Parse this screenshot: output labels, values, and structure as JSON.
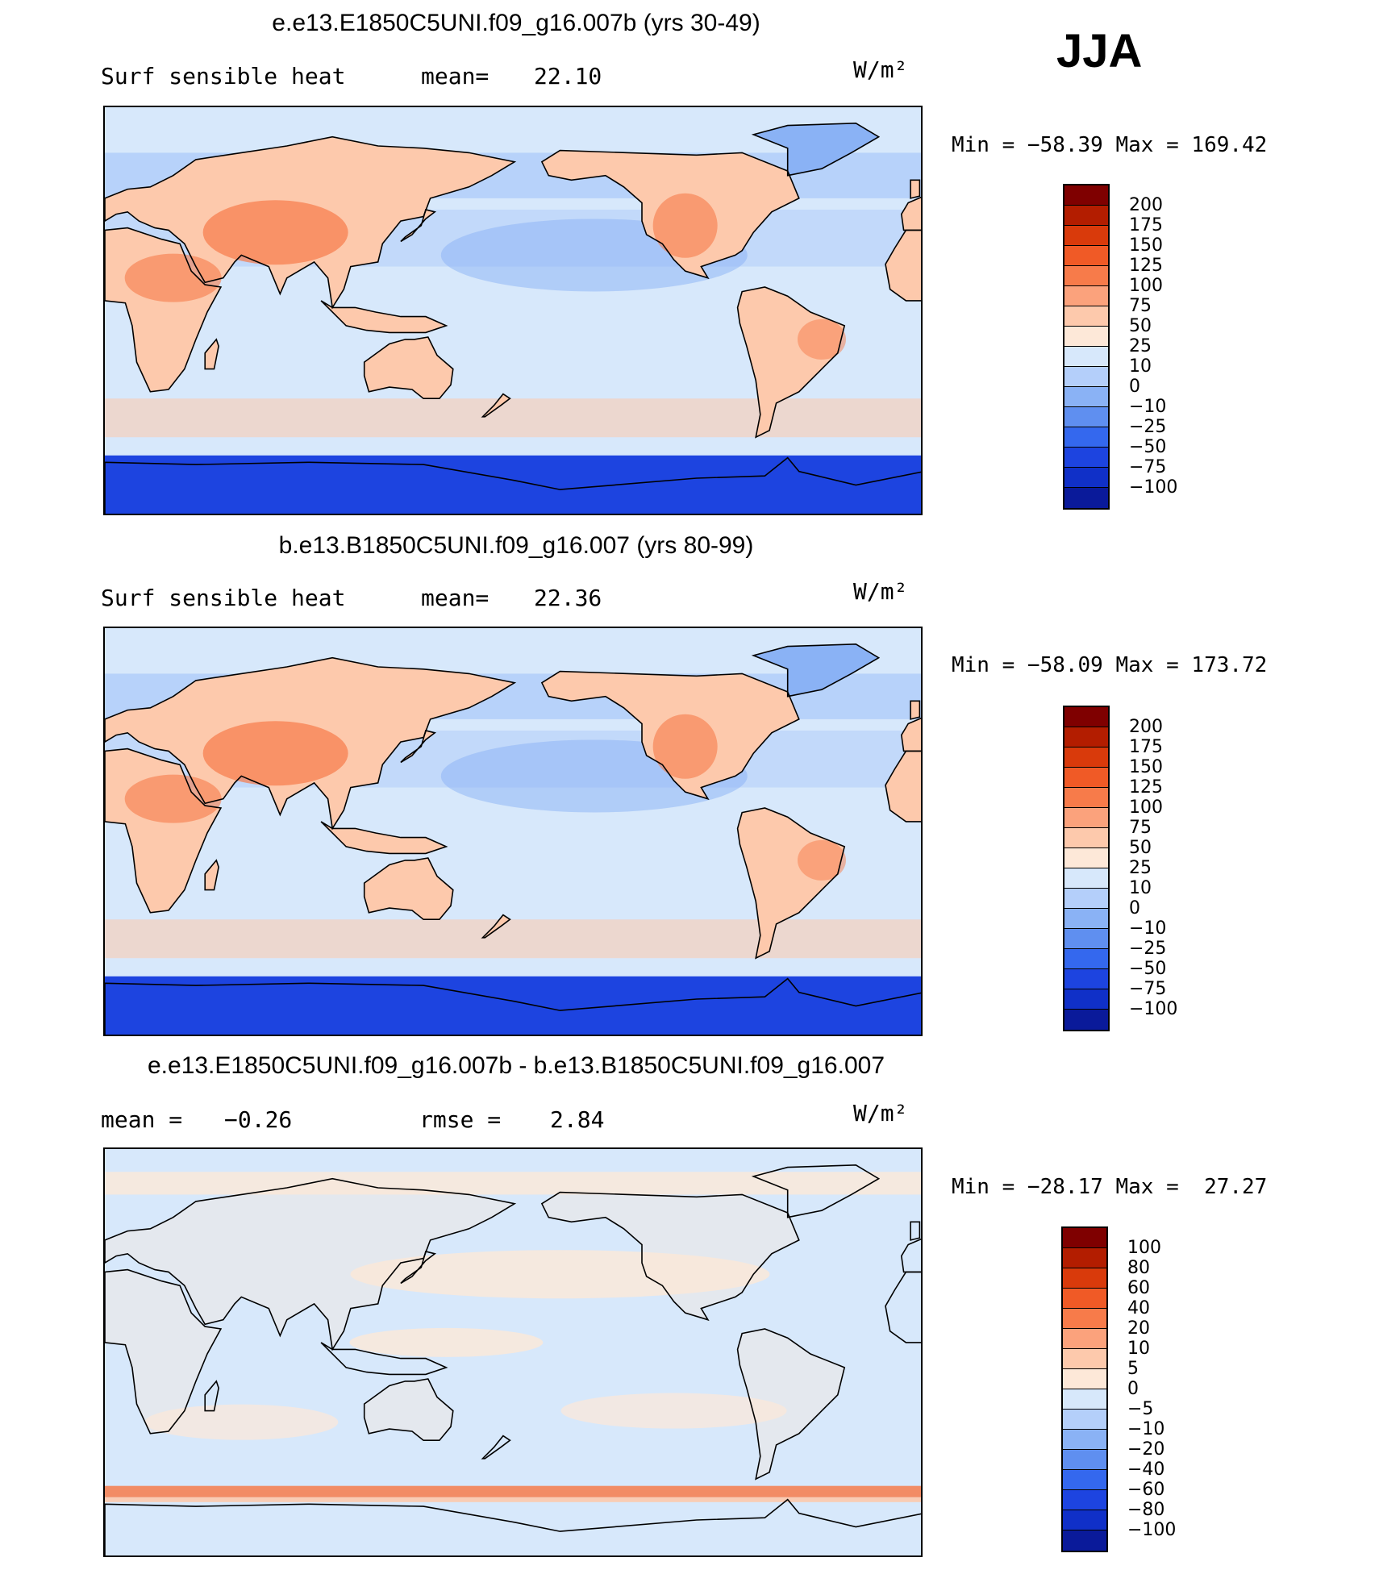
{
  "season_label": "JJA",
  "panels": [
    {
      "title": "e.e13.E1850C5UNI.f09_g16.007b (yrs 30-49)",
      "left_label": "Surf sensible heat",
      "mid_label": "mean=",
      "mid_value": "22.10",
      "units": "W/m²",
      "minmax": "Min = −58.39 Max = 169.42",
      "colorbar_levels": [
        "200",
        "175",
        "150",
        "125",
        "100",
        "75",
        "50",
        "25",
        "10",
        "0",
        "−10",
        "−25",
        "−50",
        "−75",
        "−100"
      ]
    },
    {
      "title": "b.e13.B1850C5UNI.f09_g16.007 (yrs 80-99)",
      "left_label": "Surf sensible heat",
      "mid_label": "mean=",
      "mid_value": "22.36",
      "units": "W/m²",
      "minmax": "Min = −58.09 Max = 173.72",
      "colorbar_levels": [
        "200",
        "175",
        "150",
        "125",
        "100",
        "75",
        "50",
        "25",
        "10",
        "0",
        "−10",
        "−25",
        "−50",
        "−75",
        "−100"
      ]
    },
    {
      "title": "e.e13.E1850C5UNI.f09_g16.007b - b.e13.B1850C5UNI.f09_g16.007",
      "left_label": "mean =",
      "left_value": "−0.26",
      "mid_label": "rmse =",
      "mid_value": "2.84",
      "units": "W/m²",
      "minmax": "Min = −28.17 Max =  27.27",
      "colorbar_levels": [
        "100",
        "80",
        "60",
        "40",
        "20",
        "10",
        "5",
        "0",
        "−5",
        "−10",
        "−20",
        "−40",
        "−60",
        "−80",
        "−100"
      ]
    }
  ],
  "colorbar_colors": [
    "#7f0000",
    "#b31d00",
    "#d93a0b",
    "#f05a26",
    "#f77b4a",
    "#fba27c",
    "#fdc9ac",
    "#fde8d8",
    "#d7e8fb",
    "#b4cffa",
    "#8ab2f5",
    "#5f8ff0",
    "#3468ee",
    "#1d44e0",
    "#1030c8",
    "#0a1a9a"
  ],
  "map_colors": {
    "ocean_light": "#d7e8fb",
    "ocean_mid": "#b4cffa",
    "ocean_cool": "#8ab2f5",
    "land_warm": "#fdc9ac",
    "land_hot": "#f77b4a",
    "land_mild": "#fde8d8",
    "antarctic": "#1d44e0",
    "diff_bg": "#d7e8fb",
    "diff_warm": "#fde8d8",
    "diff_band": "#f77b4a"
  }
}
